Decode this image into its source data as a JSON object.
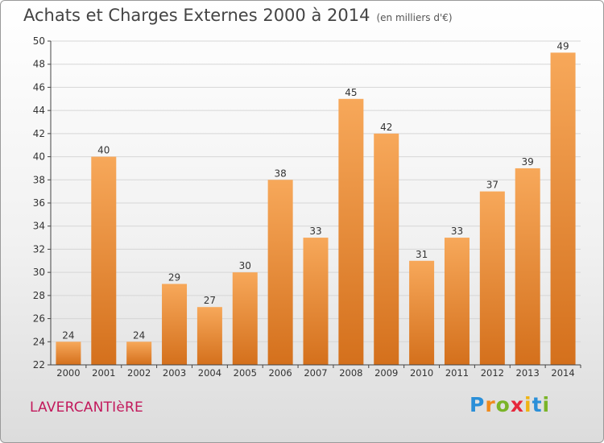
{
  "title": "Achats et Charges Externes 2000 à 2014",
  "subtitle": "(en milliers d'€)",
  "commune": "LAVERCANTIèRE",
  "brand": {
    "letters": [
      "P",
      "r",
      "o",
      "x",
      "i",
      "t",
      "i"
    ],
    "colors": [
      "#2a8fd8",
      "#f08a1c",
      "#7ab428",
      "#e6283c",
      "#f0b414",
      "#2a8fd8",
      "#7ab428"
    ]
  },
  "colors": {
    "bar_top": "#f7a85a",
    "bar_bottom": "#d4701c",
    "axis": "#444444",
    "grid": "#d6d6d6"
  },
  "chart_data": {
    "type": "bar",
    "categories": [
      "2000",
      "2001",
      "2002",
      "2003",
      "2004",
      "2005",
      "2006",
      "2007",
      "2008",
      "2009",
      "2010",
      "2011",
      "2012",
      "2013",
      "2014"
    ],
    "values": [
      24,
      40,
      24,
      29,
      27,
      30,
      38,
      33,
      45,
      42,
      31,
      33,
      37,
      39,
      49
    ],
    "ylim": [
      22,
      50
    ],
    "yticks": [
      22,
      24,
      26,
      28,
      30,
      32,
      34,
      36,
      38,
      40,
      42,
      44,
      46,
      48,
      50
    ],
    "grid": true,
    "data_labels": true
  }
}
